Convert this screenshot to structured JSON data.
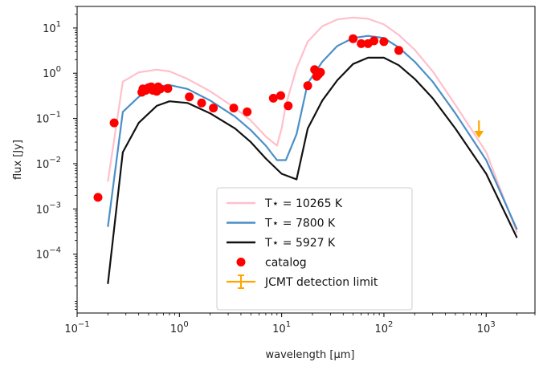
{
  "chart_data": {
    "type": "scatter",
    "xscale": "log",
    "yscale": "log",
    "xlim": [
      0.1,
      3000
    ],
    "ylim": [
      5e-06,
      30
    ],
    "xlabel": "wavelength [μm]",
    "ylabel": "flux [Jy]",
    "xticks": [
      {
        "value": 0.1,
        "base": "10",
        "exp": "−1"
      },
      {
        "value": 1,
        "base": "10",
        "exp": "0"
      },
      {
        "value": 10,
        "base": "10",
        "exp": "1"
      },
      {
        "value": 100,
        "base": "10",
        "exp": "2"
      },
      {
        "value": 1000,
        "base": "10",
        "exp": "3"
      }
    ],
    "yticks": [
      {
        "value": 0.0001,
        "base": "10",
        "exp": "−4"
      },
      {
        "value": 0.001,
        "base": "10",
        "exp": "−3"
      },
      {
        "value": 0.01,
        "base": "10",
        "exp": "−2"
      },
      {
        "value": 0.1,
        "base": "10",
        "exp": "−1"
      },
      {
        "value": 1,
        "base": "10",
        "exp": "0"
      },
      {
        "value": 10,
        "base": "10",
        "exp": "1"
      }
    ],
    "legend_position": "bottom-center",
    "series": [
      {
        "name": "T⋆ = 10265 K",
        "kind": "line",
        "color": "#ffc0cb",
        "points": [
          [
            0.2,
            0.004
          ],
          [
            0.28,
            0.65
          ],
          [
            0.4,
            1.05
          ],
          [
            0.6,
            1.2
          ],
          [
            0.8,
            1.1
          ],
          [
            1.2,
            0.75
          ],
          [
            2,
            0.4
          ],
          [
            3.5,
            0.17
          ],
          [
            5,
            0.09
          ],
          [
            7,
            0.04
          ],
          [
            9,
            0.025
          ],
          [
            10,
            0.06
          ],
          [
            11,
            0.2
          ],
          [
            14,
            1.3
          ],
          [
            18,
            5
          ],
          [
            25,
            11
          ],
          [
            35,
            15.5
          ],
          [
            50,
            17
          ],
          [
            70,
            16
          ],
          [
            100,
            12
          ],
          [
            140,
            7
          ],
          [
            200,
            3.3
          ],
          [
            300,
            1.1
          ],
          [
            500,
            0.2
          ],
          [
            1000,
            0.018
          ],
          [
            2000,
            0.0003
          ]
        ]
      },
      {
        "name": "T⋆ = 7800 K",
        "kind": "line",
        "color": "#4a8fc7",
        "points": [
          [
            0.2,
            0.0004
          ],
          [
            0.28,
            0.14
          ],
          [
            0.4,
            0.3
          ],
          [
            0.6,
            0.5
          ],
          [
            0.8,
            0.55
          ],
          [
            1.2,
            0.45
          ],
          [
            2,
            0.25
          ],
          [
            3.5,
            0.11
          ],
          [
            5,
            0.055
          ],
          [
            7,
            0.025
          ],
          [
            9,
            0.012
          ],
          [
            11,
            0.012
          ],
          [
            14,
            0.045
          ],
          [
            18,
            0.6
          ],
          [
            25,
            1.8
          ],
          [
            35,
            4
          ],
          [
            50,
            6
          ],
          [
            70,
            6.7
          ],
          [
            100,
            6
          ],
          [
            140,
            3.7
          ],
          [
            200,
            1.8
          ],
          [
            300,
            0.65
          ],
          [
            500,
            0.13
          ],
          [
            1000,
            0.012
          ],
          [
            2000,
            0.00035
          ]
        ]
      },
      {
        "name": "T⋆ = 5927 K",
        "kind": "line",
        "color": "#111111",
        "points": [
          [
            0.2,
            2.2e-05
          ],
          [
            0.28,
            0.018
          ],
          [
            0.4,
            0.08
          ],
          [
            0.6,
            0.19
          ],
          [
            0.8,
            0.24
          ],
          [
            1.2,
            0.22
          ],
          [
            2,
            0.13
          ],
          [
            3.5,
            0.06
          ],
          [
            5,
            0.03
          ],
          [
            7,
            0.013
          ],
          [
            10,
            0.006
          ],
          [
            14,
            0.0045
          ],
          [
            18,
            0.06
          ],
          [
            25,
            0.25
          ],
          [
            35,
            0.7
          ],
          [
            50,
            1.6
          ],
          [
            70,
            2.2
          ],
          [
            100,
            2.2
          ],
          [
            140,
            1.5
          ],
          [
            200,
            0.75
          ],
          [
            300,
            0.28
          ],
          [
            500,
            0.06
          ],
          [
            1000,
            0.006
          ],
          [
            2000,
            0.00023
          ]
        ]
      },
      {
        "name": "catalog",
        "kind": "scatter",
        "color": "#ff0000",
        "points": [
          [
            0.16,
            0.0018
          ],
          [
            0.23,
            0.08
          ],
          [
            0.43,
            0.38
          ],
          [
            0.44,
            0.45
          ],
          [
            0.47,
            0.42
          ],
          [
            0.5,
            0.48
          ],
          [
            0.53,
            0.5
          ],
          [
            0.55,
            0.42
          ],
          [
            0.6,
            0.4
          ],
          [
            0.62,
            0.5
          ],
          [
            0.65,
            0.45
          ],
          [
            0.77,
            0.46
          ],
          [
            1.25,
            0.3
          ],
          [
            1.65,
            0.22
          ],
          [
            2.15,
            0.17
          ],
          [
            3.4,
            0.17
          ],
          [
            4.6,
            0.14
          ],
          [
            8.3,
            0.28
          ],
          [
            9.8,
            0.32
          ],
          [
            11.6,
            0.19
          ],
          [
            18,
            0.53
          ],
          [
            21,
            1.2
          ],
          [
            22,
            0.85
          ],
          [
            23,
            0.95
          ],
          [
            24,
            1.05
          ],
          [
            50,
            5.8
          ],
          [
            60,
            4.5
          ],
          [
            70,
            4.5
          ],
          [
            80,
            5.2
          ],
          [
            100,
            5
          ],
          [
            140,
            3.2
          ]
        ]
      },
      {
        "name": "JCMT detection limit",
        "kind": "upper-limit",
        "color": "#ffa500",
        "points": [
          [
            850,
            0.04
          ]
        ]
      }
    ]
  }
}
